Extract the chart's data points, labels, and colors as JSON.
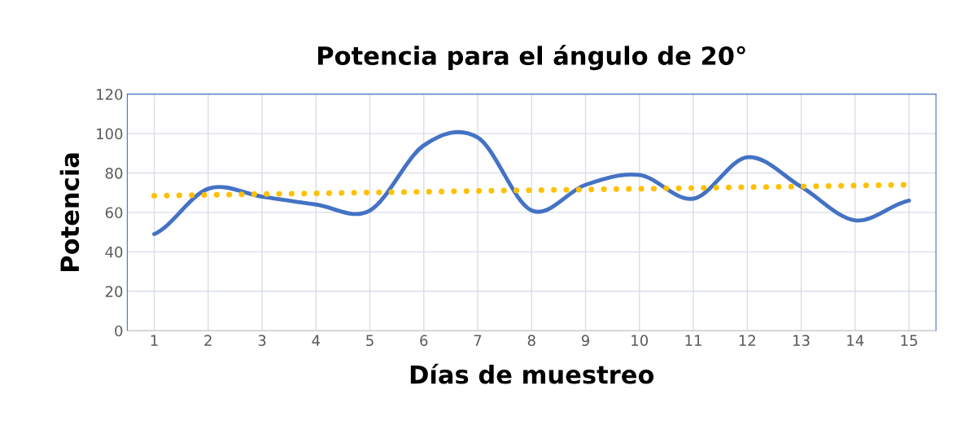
{
  "chart_data": {
    "type": "line",
    "title": "Potencia para el ángulo de 20°",
    "xlabel": "Días de muestreo",
    "ylabel": "Potencia",
    "categories": [
      "1",
      "2",
      "3",
      "4",
      "5",
      "6",
      "7",
      "8",
      "9",
      "10",
      "11",
      "12",
      "13",
      "14",
      "15"
    ],
    "series": [
      {
        "color": "#4472c4",
        "values": [
          49,
          72,
          68,
          64,
          61,
          94,
          98,
          61,
          74,
          79,
          67,
          88,
          73,
          56,
          66
        ],
        "line_style": "solid"
      },
      {
        "color": "#ffc000",
        "values": [
          68.5,
          68.9,
          69.3,
          69.7,
          70.1,
          70.5,
          70.9,
          71.3,
          71.6,
          72.0,
          72.4,
          72.8,
          73.2,
          73.6,
          74.0
        ],
        "line_style": "dotted"
      }
    ],
    "ylim": [
      0,
      120
    ],
    "yticks": [
      0,
      20,
      40,
      60,
      80,
      100,
      120
    ],
    "grid": true,
    "legend": false,
    "marker": "none"
  }
}
